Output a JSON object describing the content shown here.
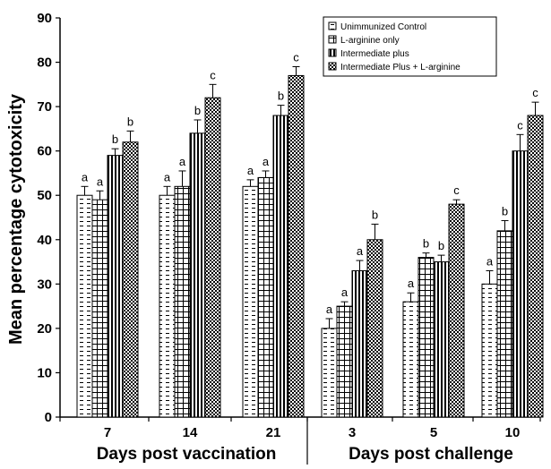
{
  "chart_data": {
    "type": "bar",
    "ylabel": "Mean percentage cytotoxicity",
    "ylim": [
      0,
      90
    ],
    "yticks": [
      0,
      10,
      20,
      30,
      40,
      50,
      60,
      70,
      80,
      90
    ],
    "grid": false,
    "legend_position": "top-right",
    "groups": [
      {
        "label": "Days post vaccination",
        "categories": [
          "7",
          "14",
          "21"
        ]
      },
      {
        "label": "Days post challenge",
        "categories": [
          "3",
          "5",
          "10"
        ]
      }
    ],
    "categories": [
      "7",
      "14",
      "21",
      "3",
      "5",
      "10"
    ],
    "series": [
      {
        "name": "Unimmunized Control",
        "pattern": "dashes",
        "values": [
          50,
          50,
          52,
          20,
          26,
          30
        ],
        "errors": [
          2,
          2,
          1.5,
          2.2,
          2,
          3
        ],
        "labels": [
          "a",
          "a",
          "a",
          "a",
          "a",
          "a"
        ]
      },
      {
        "name": "L-arginine only",
        "pattern": "grid",
        "values": [
          49,
          52,
          54,
          25,
          36,
          42
        ],
        "errors": [
          2,
          3.5,
          1.5,
          1,
          1,
          2.3
        ],
        "labels": [
          "a",
          "a",
          "a",
          "a",
          "b",
          "b"
        ]
      },
      {
        "name": "Intermediate plus",
        "pattern": "vstripes",
        "values": [
          59,
          64,
          68,
          33,
          35,
          60
        ],
        "errors": [
          1.5,
          3,
          2.3,
          2.3,
          1.5,
          3.7
        ],
        "labels": [
          "b",
          "b",
          "b",
          "a",
          "b",
          "c"
        ]
      },
      {
        "name": "Intermediate Plus + L-arginine",
        "pattern": "checker",
        "values": [
          62,
          72,
          77,
          40,
          48,
          68
        ],
        "errors": [
          2.5,
          3,
          2,
          3.5,
          1,
          3
        ],
        "labels": [
          "b",
          "c",
          "c",
          "b",
          "c",
          "c"
        ]
      }
    ]
  }
}
